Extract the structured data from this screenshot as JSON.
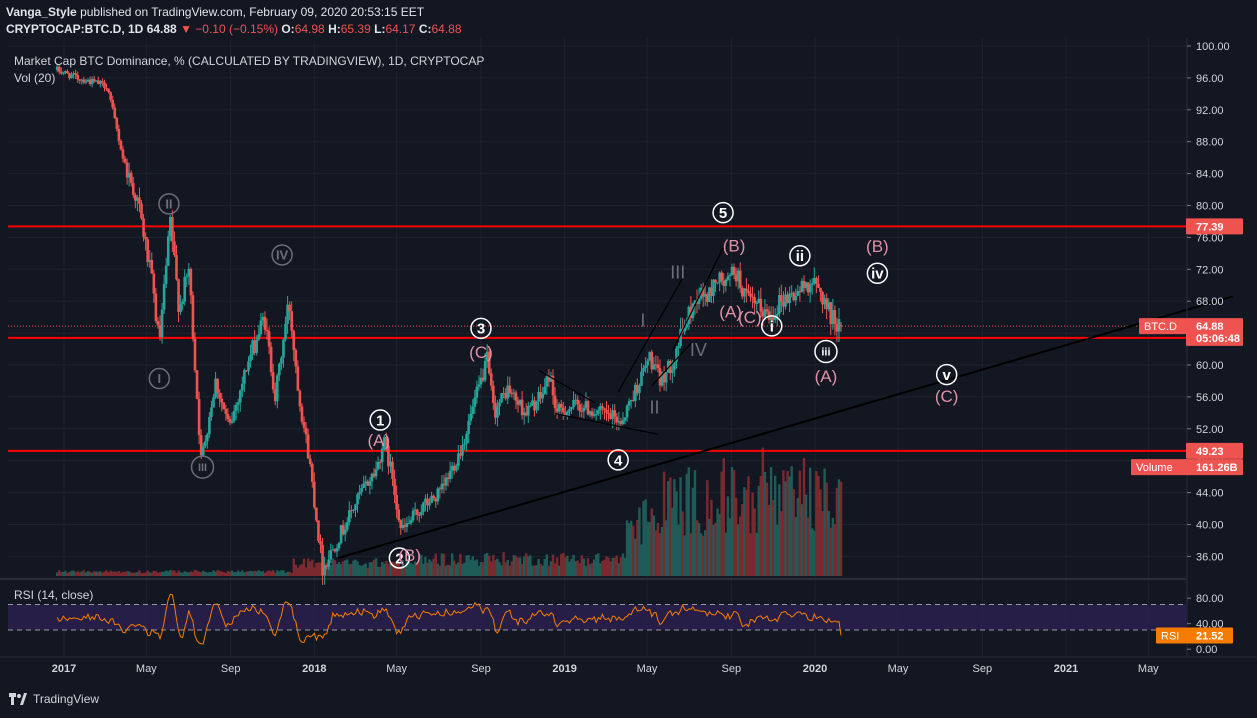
{
  "header": {
    "publisher": "Vanga_Style",
    "published_text": "published on TradingView.com, February 09, 2020 20:53:15 EET",
    "symbol": "CRYPTOCAP:BTC.D, 1D",
    "last": "64.88",
    "change": "▼ −0.10 (−0.15%)",
    "o_label": "O:",
    "o": "64.98",
    "h_label": "H:",
    "h": "65.39",
    "l_label": "L:",
    "l": "64.17",
    "c_label": "C:",
    "c": "64.88"
  },
  "legend": {
    "title": "Market Cap BTC Dominance, % (CALCULATED BY TRADINGVIEW), 1D, CRYPTOCAP",
    "volume": "Vol (20)",
    "rsi": "RSI (14, close)"
  },
  "footer": {
    "brand": "TradingView"
  },
  "colors": {
    "background": "#131722",
    "up": "#26a69a",
    "down": "#ef5350",
    "level": "#ff0000",
    "rsi_line": "#f57c00",
    "rsi_band": "#2a1f4d",
    "wave_pink": "#e091a8",
    "wave_white": "#ffffff",
    "wave_gray": "#6b6f78",
    "badge": "#ef5350",
    "text": "#d1d4dc"
  },
  "chart_data": {
    "type": "candlestick",
    "x_ticks": [
      "2017",
      "May",
      "Sep",
      "2018",
      "May",
      "Sep",
      "2019",
      "May",
      "Sep",
      "2020",
      "May",
      "Sep",
      "2021",
      "May"
    ],
    "y_ticks": [
      "100.00",
      "96.00",
      "92.00",
      "88.00",
      "84.00",
      "80.00",
      "76.00",
      "72.00",
      "68.00",
      "64.00",
      "60.00",
      "56.00",
      "52.00",
      "48.00",
      "44.00",
      "40.00",
      "36.00"
    ],
    "ylim": [
      34,
      100
    ],
    "price_path": [
      {
        "t": "2016-12-22",
        "v": 97.0
      },
      {
        "t": "2017-01-20",
        "v": 96.0
      },
      {
        "t": "2017-03-05",
        "v": 95.0
      },
      {
        "t": "2017-03-28",
        "v": 86.0
      },
      {
        "t": "2017-04-20",
        "v": 80.0
      },
      {
        "t": "2017-05-10",
        "v": 70.0
      },
      {
        "t": "2017-05-20",
        "v": 62.5
      },
      {
        "t": "2017-06-05",
        "v": 78.0
      },
      {
        "t": "2017-06-18",
        "v": 67.0
      },
      {
        "t": "2017-07-02",
        "v": 72.0
      },
      {
        "t": "2017-07-20",
        "v": 48.0
      },
      {
        "t": "2017-08-10",
        "v": 58.0
      },
      {
        "t": "2017-08-30",
        "v": 52.0
      },
      {
        "t": "2017-09-25",
        "v": 60.0
      },
      {
        "t": "2017-10-20",
        "v": 66.0
      },
      {
        "t": "2017-11-05",
        "v": 56.0
      },
      {
        "t": "2017-11-25",
        "v": 68.0
      },
      {
        "t": "2017-12-10",
        "v": 56.0
      },
      {
        "t": "2017-12-25",
        "v": 48.0
      },
      {
        "t": "2018-01-13",
        "v": 34.5
      },
      {
        "t": "2018-01-28",
        "v": 37.0
      },
      {
        "t": "2018-02-15",
        "v": 40.0
      },
      {
        "t": "2018-03-10",
        "v": 44.0
      },
      {
        "t": "2018-04-02",
        "v": 47.0
      },
      {
        "t": "2018-04-12",
        "v": 50.5
      },
      {
        "t": "2018-04-25",
        "v": 46.0
      },
      {
        "t": "2018-05-08",
        "v": 39.0
      },
      {
        "t": "2018-06-05",
        "v": 42.0
      },
      {
        "t": "2018-07-05",
        "v": 44.0
      },
      {
        "t": "2018-08-05",
        "v": 50.0
      },
      {
        "t": "2018-08-25",
        "v": 56.0
      },
      {
        "t": "2018-09-10",
        "v": 60.5
      },
      {
        "t": "2018-09-20",
        "v": 54.0
      },
      {
        "t": "2018-10-10",
        "v": 57.0
      },
      {
        "t": "2018-11-05",
        "v": 54.0
      },
      {
        "t": "2018-11-28",
        "v": 56.0
      },
      {
        "t": "2018-12-10",
        "v": 59.0
      },
      {
        "t": "2018-12-20",
        "v": 54.0
      },
      {
        "t": "2019-01-20",
        "v": 55.0
      },
      {
        "t": "2019-02-20",
        "v": 54.0
      },
      {
        "t": "2019-03-25",
        "v": 53.0
      },
      {
        "t": "2019-04-15",
        "v": 57.0
      },
      {
        "t": "2019-05-05",
        "v": 61.0
      },
      {
        "t": "2019-05-20",
        "v": 58.0
      },
      {
        "t": "2019-06-05",
        "v": 60.0
      },
      {
        "t": "2019-06-25",
        "v": 65.0
      },
      {
        "t": "2019-07-15",
        "v": 69.0
      },
      {
        "t": "2019-07-30",
        "v": 68.5
      },
      {
        "t": "2019-08-10",
        "v": 71.0
      },
      {
        "t": "2019-08-25",
        "v": 70.0
      },
      {
        "t": "2019-09-05",
        "v": 72.0
      },
      {
        "t": "2019-09-25",
        "v": 68.0
      },
      {
        "t": "2019-10-15",
        "v": 67.0
      },
      {
        "t": "2019-10-28",
        "v": 66.0
      },
      {
        "t": "2019-11-10",
        "v": 68.0
      },
      {
        "t": "2019-12-05",
        "v": 69.0
      },
      {
        "t": "2019-12-25",
        "v": 70.5
      },
      {
        "t": "2020-01-10",
        "v": 69.0
      },
      {
        "t": "2020-01-25",
        "v": 66.0
      },
      {
        "t": "2020-02-09",
        "v": 64.88
      }
    ],
    "price_levels": [
      77.39,
      63.4,
      49.23
    ],
    "trendline": [
      {
        "t": "2018-02-05",
        "v": 35.8
      },
      {
        "t": "2021-09-01",
        "v": 68.6
      }
    ],
    "badges": [
      {
        "label": "77.39",
        "v": 77.39
      },
      {
        "label": "BTC.D",
        "value": "64.88",
        "v": 64.88
      },
      {
        "label": "05:06:48",
        "v": 63.4
      },
      {
        "label": "49.23",
        "v": 49.23
      },
      {
        "label": "Volume",
        "value": "161.26B",
        "v": 47.2
      }
    ],
    "wave_labels": [
      {
        "text": "II",
        "style": "gray",
        "circle": true,
        "t": "2017-06-03",
        "v": 80.2
      },
      {
        "text": "IV",
        "style": "gray",
        "circle": true,
        "t": "2017-11-15",
        "v": 73.8
      },
      {
        "text": "I",
        "style": "gray",
        "circle": true,
        "t": "2017-05-20",
        "v": 58.3
      },
      {
        "text": "III",
        "style": "gray",
        "circle": true,
        "t": "2017-07-22",
        "v": 47.2
      },
      {
        "text": "1",
        "style": "white",
        "circle": true,
        "t": "2018-04-07",
        "v": 53.1
      },
      {
        "text": "(A)",
        "style": "pink",
        "circle": false,
        "t": "2018-04-05",
        "v": 50.6
      },
      {
        "text": "2",
        "style": "white",
        "circle": true,
        "t": "2018-05-05",
        "v": 35.8
      },
      {
        "text": "(B)",
        "style": "pink",
        "circle": false,
        "t": "2018-05-20",
        "v": 36.2
      },
      {
        "text": "3",
        "style": "white",
        "circle": true,
        "t": "2018-09-01",
        "v": 64.6
      },
      {
        "text": "(C)",
        "style": "pink",
        "circle": false,
        "t": "2018-09-01",
        "v": 61.6
      },
      {
        "text": "4",
        "style": "white",
        "circle": true,
        "t": "2019-03-20",
        "v": 48.1
      },
      {
        "text": "I",
        "style": "gray",
        "circle": false,
        "t": "2019-04-25",
        "v": 65.6
      },
      {
        "text": "II",
        "style": "gray",
        "circle": false,
        "t": "2019-05-12",
        "v": 54.7
      },
      {
        "text": "III",
        "style": "gray",
        "circle": false,
        "t": "2019-06-15",
        "v": 71.6
      },
      {
        "text": "IV",
        "style": "gray",
        "circle": false,
        "t": "2019-07-15",
        "v": 61.9
      },
      {
        "text": "5",
        "style": "white",
        "circle": true,
        "t": "2019-08-20",
        "v": 79.1
      },
      {
        "text": "(B)",
        "style": "pink",
        "circle": false,
        "t": "2019-09-05",
        "v": 75.0
      },
      {
        "text": "(A)",
        "style": "pink",
        "circle": false,
        "t": "2019-08-31",
        "v": 66.7
      },
      {
        "text": "(C)",
        "style": "pink",
        "circle": false,
        "t": "2019-09-28",
        "v": 66.0
      },
      {
        "text": "i",
        "style": "white",
        "circle": true,
        "t": "2019-10-30",
        "v": 64.9
      },
      {
        "text": "ii",
        "style": "white",
        "circle": true,
        "t": "2019-12-10",
        "v": 73.7
      },
      {
        "text": "iii",
        "style": "white",
        "circle": true,
        "t": "2020-01-17",
        "v": 61.7
      },
      {
        "text": "(A)",
        "style": "pink",
        "circle": false,
        "t": "2020-01-17",
        "v": 58.6
      },
      {
        "text": "(B)",
        "style": "pink",
        "circle": false,
        "t": "2020-04-01",
        "v": 74.9
      },
      {
        "text": "iv",
        "style": "white",
        "circle": true,
        "t": "2020-04-01",
        "v": 71.5
      },
      {
        "text": "v",
        "style": "white",
        "circle": true,
        "t": "2020-07-11",
        "v": 58.8
      },
      {
        "text": "(C)",
        "style": "pink",
        "circle": false,
        "t": "2020-07-11",
        "v": 56.1
      }
    ],
    "rsi": {
      "title": "RSI (14, close)",
      "last": "21.52",
      "levels": [
        70,
        30
      ],
      "y_ticks": [
        "80.00",
        "40.00",
        "0.00"
      ],
      "ylim": [
        0,
        100
      ],
      "band": [
        30,
        70
      ]
    }
  }
}
